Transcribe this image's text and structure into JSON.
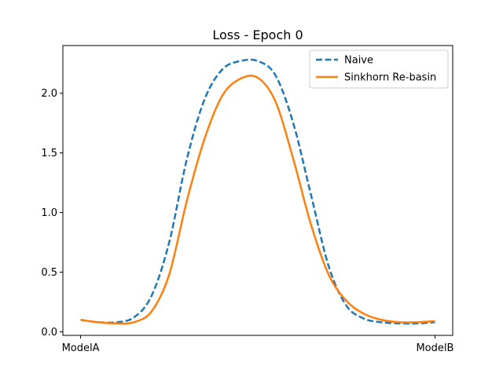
{
  "chart_data": {
    "type": "line",
    "title": "Loss - Epoch 0",
    "xlabel": "",
    "ylabel": "",
    "xlim": [
      -0.05,
      1.05
    ],
    "ylim": [
      -0.03,
      2.4
    ],
    "x_ticks": [
      {
        "value": 0,
        "label": "ModelA"
      },
      {
        "value": 1,
        "label": "ModelB"
      }
    ],
    "y_ticks": [
      {
        "value": 0.0,
        "label": "0.0"
      },
      {
        "value": 0.5,
        "label": "0.5"
      },
      {
        "value": 1.0,
        "label": "1.0"
      },
      {
        "value": 1.5,
        "label": "1.5"
      },
      {
        "value": 2.0,
        "label": "2.0"
      }
    ],
    "grid": false,
    "legend_position": "top-right",
    "x": [
      0.0,
      0.05,
      0.1,
      0.15,
      0.2,
      0.25,
      0.3,
      0.35,
      0.4,
      0.45,
      0.5,
      0.55,
      0.6,
      0.65,
      0.7,
      0.75,
      0.8,
      0.85,
      0.9,
      0.95,
      1.0
    ],
    "series": [
      {
        "name": "Naive",
        "color": "#1f77b4",
        "style": "dashed",
        "values": [
          0.1,
          0.08,
          0.08,
          0.12,
          0.3,
          0.75,
          1.45,
          1.95,
          2.2,
          2.27,
          2.27,
          2.15,
          1.75,
          1.15,
          0.55,
          0.22,
          0.11,
          0.08,
          0.07,
          0.07,
          0.08
        ]
      },
      {
        "name": "Sinkhorn Re-basin",
        "color": "#ff7f0e",
        "style": "solid",
        "values": [
          0.1,
          0.08,
          0.07,
          0.08,
          0.17,
          0.48,
          1.1,
          1.62,
          1.98,
          2.12,
          2.13,
          1.93,
          1.45,
          0.9,
          0.48,
          0.26,
          0.15,
          0.1,
          0.08,
          0.08,
          0.09
        ]
      }
    ]
  }
}
